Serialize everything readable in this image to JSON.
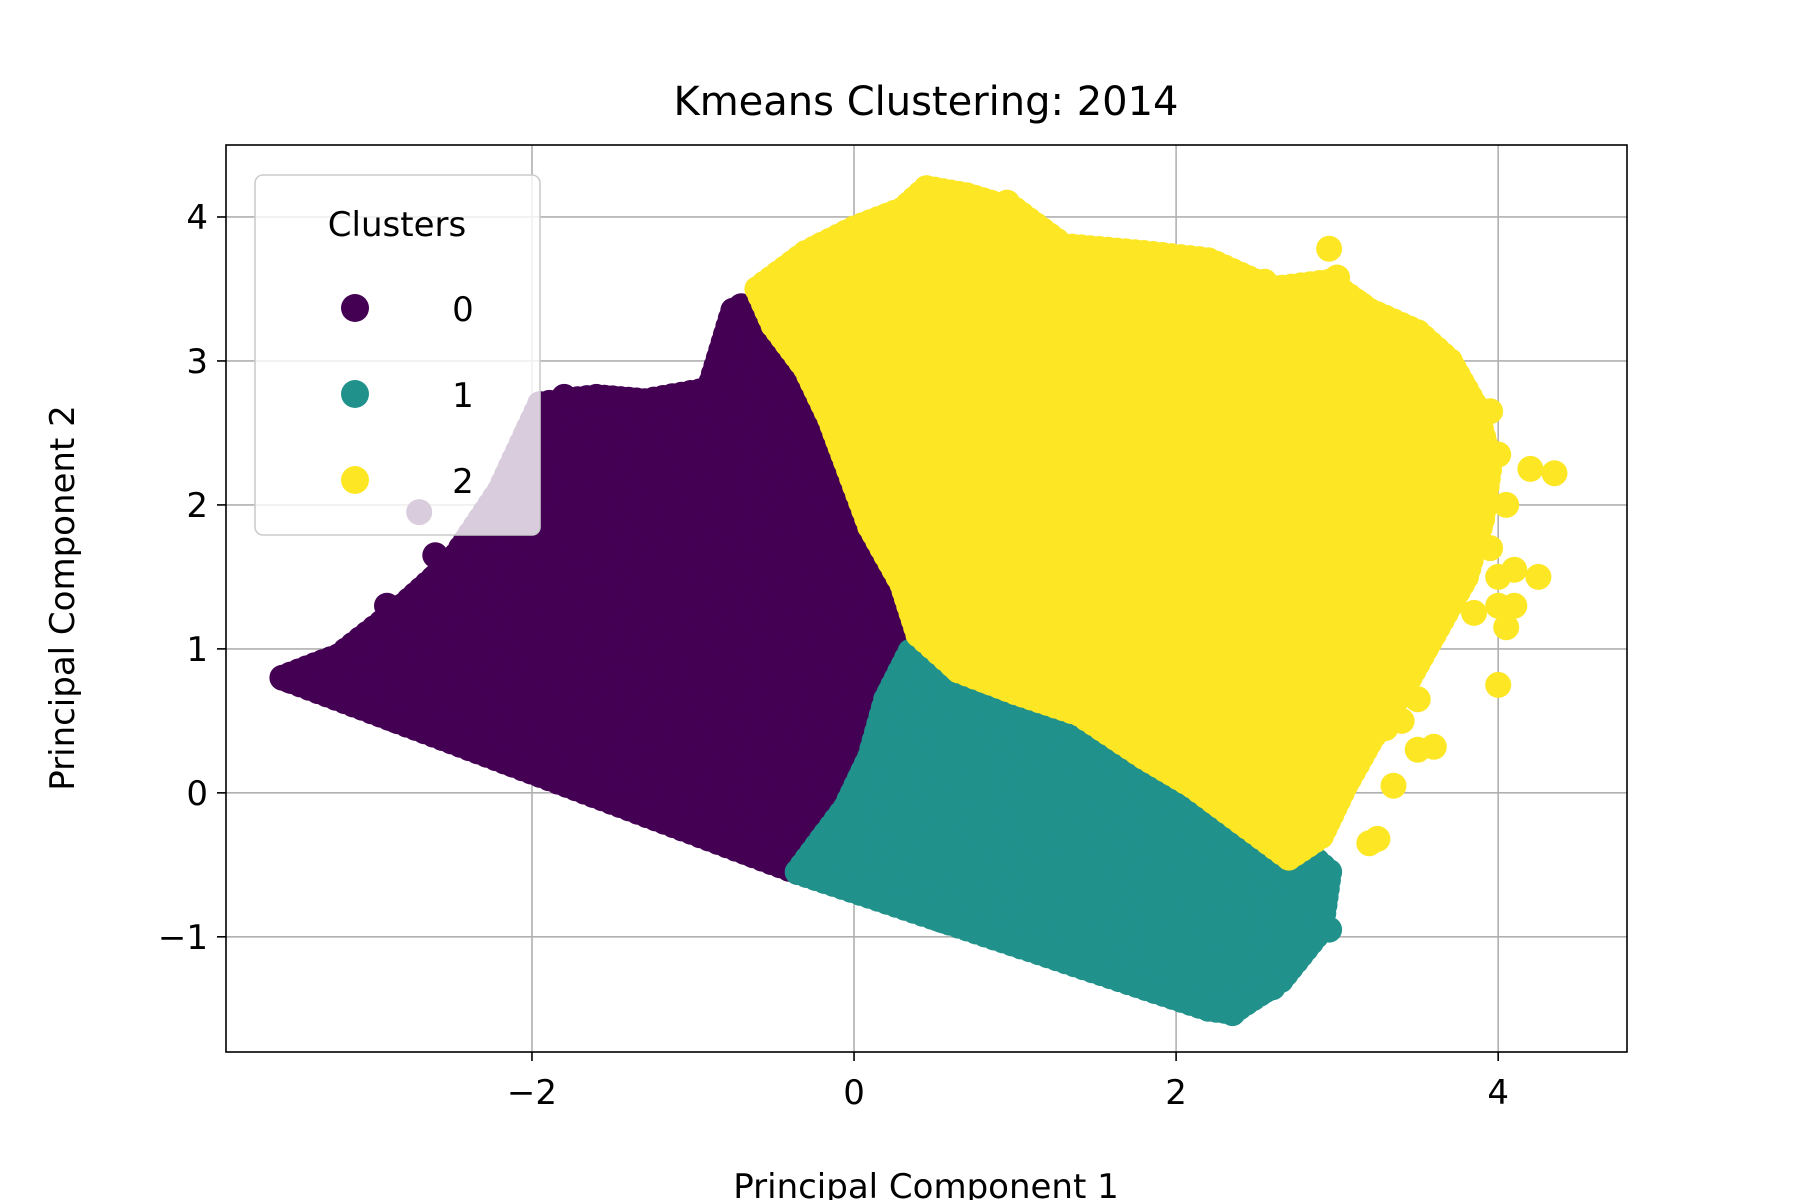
{
  "chart_data": {
    "type": "scatter",
    "title": "Kmeans Clustering: 2014",
    "xlabel": "Principal Component 1",
    "ylabel": "Principal Component 2",
    "xlim": [
      -3.9,
      4.8
    ],
    "ylim": [
      -1.8,
      4.5
    ],
    "xticks": [
      -2,
      0,
      2,
      4
    ],
    "yticks": [
      -1,
      0,
      1,
      2,
      3,
      4
    ],
    "tick_text": {
      "x": [
        "−2",
        "0",
        "2",
        "4"
      ],
      "y": [
        "−1",
        "0",
        "1",
        "2",
        "3",
        "4"
      ]
    },
    "grid": true,
    "legend": {
      "title": "Clusters",
      "placement": "top-left"
    },
    "series": [
      {
        "name": "0",
        "color": "#440154",
        "region": [
          [
            -3.55,
            0.8
          ],
          [
            -3.2,
            0.95
          ],
          [
            -2.8,
            1.3
          ],
          [
            -2.5,
            1.6
          ],
          [
            -2.2,
            2.1
          ],
          [
            -1.95,
            2.7
          ],
          [
            -1.6,
            2.75
          ],
          [
            -1.3,
            2.72
          ],
          [
            -0.9,
            2.8
          ],
          [
            -0.75,
            3.35
          ],
          [
            -0.55,
            3.2
          ],
          [
            -0.35,
            2.8
          ],
          [
            -0.25,
            2.45
          ],
          [
            0.0,
            2.0
          ],
          [
            0.15,
            1.7
          ],
          [
            0.3,
            1.25
          ],
          [
            0.4,
            0.95
          ],
          [
            0.3,
            0.55
          ],
          [
            0.05,
            0.2
          ],
          [
            -0.05,
            -0.1
          ],
          [
            -0.2,
            -0.45
          ],
          [
            -0.35,
            -0.55
          ]
        ],
        "outliers": [
          [
            -3.2,
            0.9
          ],
          [
            -2.9,
            1.3
          ],
          [
            -2.85,
            1.25
          ],
          [
            -2.6,
            1.5
          ],
          [
            -2.6,
            1.65
          ],
          [
            -2.7,
            1.95
          ],
          [
            -2.3,
            1.6
          ],
          [
            -2.5,
            1.3
          ],
          [
            -2.3,
            1.9
          ],
          [
            -1.8,
            2.75
          ],
          [
            -0.7,
            3.38
          ]
        ]
      },
      {
        "name": "1",
        "color": "#21918c",
        "region": [
          [
            -0.35,
            -0.55
          ],
          [
            -0.05,
            -0.1
          ],
          [
            0.1,
            0.25
          ],
          [
            0.2,
            0.65
          ],
          [
            0.35,
            0.98
          ],
          [
            0.6,
            0.85
          ],
          [
            0.85,
            0.78
          ],
          [
            1.2,
            0.6
          ],
          [
            1.6,
            0.35
          ],
          [
            1.9,
            0.15
          ],
          [
            2.2,
            -0.05
          ],
          [
            2.5,
            -0.25
          ],
          [
            2.8,
            -0.4
          ],
          [
            2.95,
            -0.55
          ],
          [
            2.9,
            -0.95
          ],
          [
            2.65,
            -1.3
          ],
          [
            2.35,
            -1.52
          ],
          [
            2.2,
            -1.5
          ]
        ],
        "outliers": [
          [
            2.75,
            -1.05
          ],
          [
            2.6,
            -1.35
          ],
          [
            2.35,
            -1.53
          ],
          [
            2.95,
            -0.95
          ],
          [
            2.8,
            -1.0
          ],
          [
            2.55,
            -1.2
          ],
          [
            1.65,
            0.35
          ],
          [
            2.95,
            -0.55
          ],
          [
            2.7,
            -0.85
          ]
        ]
      },
      {
        "name": "2",
        "color": "#fde725",
        "region": [
          [
            -0.6,
            3.5
          ],
          [
            -0.3,
            3.75
          ],
          [
            0.0,
            3.92
          ],
          [
            0.3,
            4.05
          ],
          [
            0.45,
            4.2
          ],
          [
            0.7,
            4.15
          ],
          [
            1.0,
            4.05
          ],
          [
            1.3,
            3.8
          ],
          [
            1.8,
            3.75
          ],
          [
            2.2,
            3.7
          ],
          [
            2.6,
            3.5
          ],
          [
            2.95,
            3.55
          ],
          [
            3.2,
            3.35
          ],
          [
            3.5,
            3.2
          ],
          [
            3.7,
            3.0
          ],
          [
            3.85,
            2.7
          ],
          [
            3.95,
            2.3
          ],
          [
            3.9,
            1.9
          ],
          [
            3.8,
            1.5
          ],
          [
            3.6,
            1.1
          ],
          [
            3.4,
            0.7
          ],
          [
            3.2,
            0.35
          ],
          [
            3.05,
            0.05
          ],
          [
            2.9,
            -0.3
          ],
          [
            2.7,
            -0.45
          ],
          [
            2.4,
            -0.2
          ],
          [
            2.1,
            0.05
          ],
          [
            1.8,
            0.25
          ],
          [
            1.4,
            0.55
          ],
          [
            1.0,
            0.7
          ],
          [
            0.65,
            0.85
          ],
          [
            0.4,
            1.1
          ],
          [
            0.3,
            1.45
          ],
          [
            0.1,
            1.85
          ],
          [
            -0.05,
            2.3
          ],
          [
            -0.15,
            2.6
          ],
          [
            -0.3,
            2.95
          ],
          [
            -0.5,
            3.25
          ]
        ],
        "outliers": [
          [
            0.45,
            4.2
          ],
          [
            0.7,
            4.15
          ],
          [
            0.95,
            4.1
          ],
          [
            2.55,
            3.55
          ],
          [
            2.95,
            3.78
          ],
          [
            3.0,
            3.58
          ],
          [
            3.95,
            2.65
          ],
          [
            4.0,
            2.35
          ],
          [
            4.05,
            2.0
          ],
          [
            4.2,
            2.25
          ],
          [
            4.35,
            2.22
          ],
          [
            3.95,
            1.7
          ],
          [
            4.0,
            1.5
          ],
          [
            4.1,
            1.55
          ],
          [
            4.25,
            1.5
          ],
          [
            4.0,
            1.3
          ],
          [
            4.1,
            1.3
          ],
          [
            4.05,
            1.15
          ],
          [
            3.85,
            1.25
          ],
          [
            4.0,
            0.75
          ],
          [
            3.5,
            0.65
          ],
          [
            3.4,
            0.5
          ],
          [
            3.35,
            0.05
          ],
          [
            3.5,
            0.3
          ],
          [
            3.6,
            0.32
          ],
          [
            3.2,
            -0.35
          ],
          [
            3.25,
            -0.32
          ],
          [
            3.3,
            0.45
          ],
          [
            3.25,
            0.55
          ]
        ]
      }
    ]
  }
}
